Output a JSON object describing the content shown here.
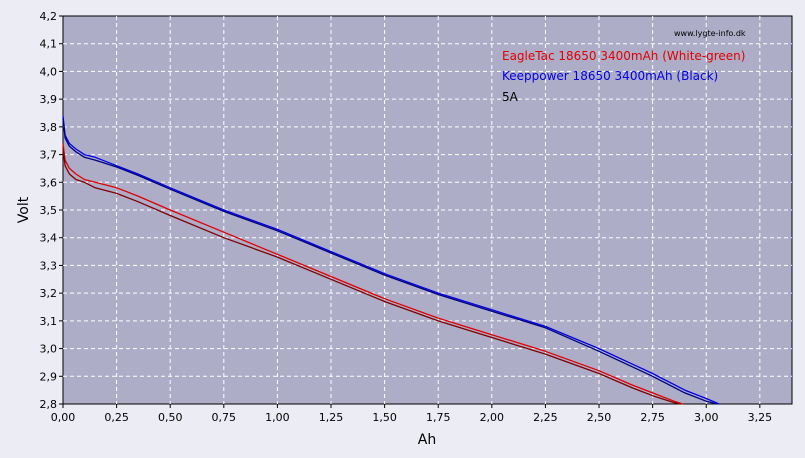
{
  "chart_data": {
    "type": "line",
    "xlabel": "Ah",
    "ylabel": "Volt",
    "xlim": [
      0,
      3.4
    ],
    "ylim": [
      2.8,
      4.2
    ],
    "x_ticks": [
      "0,00",
      "0,25",
      "0,50",
      "0,75",
      "1,00",
      "1,25",
      "1,50",
      "1,75",
      "2,00",
      "2,25",
      "2,50",
      "2,75",
      "3,00",
      "3,25"
    ],
    "y_ticks": [
      "2,8",
      "2,9",
      "3,0",
      "3,1",
      "3,2",
      "3,3",
      "3,4",
      "3,5",
      "3,6",
      "3,7",
      "3,8",
      "3,9",
      "4,0",
      "4,1",
      "4,2"
    ],
    "grid": true,
    "watermark": "www.lygte-info.dk",
    "legend": {
      "placement": "top-right",
      "entries": [
        {
          "text": "EagleTac 18650 3400mAh (White-green)",
          "color": "#e00000"
        },
        {
          "text": "Keeppower 18650 3400mAh (Black)",
          "color": "#0000e0"
        },
        {
          "text": "5A",
          "color": "#000000"
        }
      ]
    },
    "colors": {
      "plot_background": "#adadc8",
      "grid": "#ffffff",
      "page_background": "#ecedf4"
    },
    "series": [
      {
        "name": "EagleTac 18650 3400mAh (White-green)",
        "color": "#e00000",
        "x": [
          0.0,
          0.01,
          0.03,
          0.06,
          0.1,
          0.15,
          0.25,
          0.35,
          0.5,
          0.75,
          1.0,
          1.25,
          1.5,
          1.75,
          2.0,
          2.25,
          2.5,
          2.65,
          2.75,
          2.85,
          2.89
        ],
        "y": [
          3.74,
          3.68,
          3.65,
          3.63,
          3.61,
          3.6,
          3.58,
          3.55,
          3.5,
          3.42,
          3.34,
          3.26,
          3.18,
          3.11,
          3.05,
          2.99,
          2.92,
          2.87,
          2.84,
          2.81,
          2.8
        ]
      },
      {
        "name": "EagleTac 18650 3400mAh (White-green) 2",
        "color": "#800000",
        "x": [
          0.0,
          0.01,
          0.03,
          0.06,
          0.1,
          0.15,
          0.25,
          0.35,
          0.5,
          0.75,
          1.0,
          1.25,
          1.5,
          1.75,
          2.0,
          2.25,
          2.5,
          2.65,
          2.75,
          2.85,
          2.88
        ],
        "y": [
          3.72,
          3.66,
          3.63,
          3.61,
          3.6,
          3.58,
          3.56,
          3.53,
          3.48,
          3.4,
          3.33,
          3.25,
          3.17,
          3.1,
          3.04,
          2.98,
          2.91,
          2.86,
          2.83,
          2.805,
          2.8
        ]
      },
      {
        "name": "Keeppower 18650 3400mAh (Black)",
        "color": "#0000e0",
        "x": [
          0.0,
          0.01,
          0.03,
          0.06,
          0.1,
          0.15,
          0.25,
          0.35,
          0.5,
          0.75,
          1.0,
          1.25,
          1.5,
          1.75,
          2.0,
          2.25,
          2.5,
          2.75,
          2.9,
          3.0,
          3.06
        ],
        "y": [
          3.84,
          3.77,
          3.74,
          3.72,
          3.7,
          3.69,
          3.66,
          3.63,
          3.58,
          3.5,
          3.43,
          3.35,
          3.27,
          3.2,
          3.14,
          3.08,
          3.0,
          2.91,
          2.85,
          2.82,
          2.8
        ]
      },
      {
        "name": "Keeppower 18650 3400mAh (Black) 2",
        "color": "#000080",
        "x": [
          0.0,
          0.01,
          0.03,
          0.06,
          0.1,
          0.15,
          0.25,
          0.35,
          0.5,
          0.75,
          1.0,
          1.25,
          1.5,
          1.75,
          2.0,
          2.25,
          2.5,
          2.75,
          2.9,
          3.0,
          3.05
        ],
        "y": [
          3.83,
          3.76,
          3.73,
          3.71,
          3.69,
          3.68,
          3.655,
          3.625,
          3.575,
          3.495,
          3.425,
          3.345,
          3.265,
          3.195,
          3.135,
          3.075,
          2.99,
          2.9,
          2.84,
          2.81,
          2.8
        ]
      }
    ]
  }
}
